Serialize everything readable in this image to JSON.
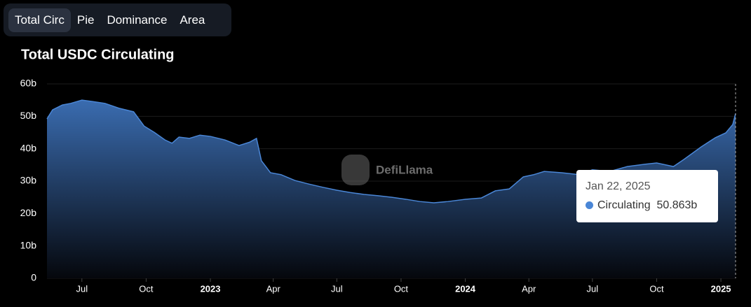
{
  "tabs": [
    "Total Circ",
    "Pie",
    "Dominance",
    "Area"
  ],
  "chart_data": {
    "type": "area",
    "title": "Total USDC Circulating",
    "watermark": "DefiLlama",
    "x": [
      "2022-05-12",
      "2022-05-20",
      "2022-06-03",
      "2022-06-15",
      "2022-07-01",
      "2022-07-15",
      "2022-08-03",
      "2022-08-23",
      "2022-09-13",
      "2022-09-28",
      "2022-10-13",
      "2022-10-28",
      "2022-11-07",
      "2022-11-17",
      "2022-12-02",
      "2022-12-17",
      "2023-01-01",
      "2023-01-22",
      "2023-02-11",
      "2023-02-26",
      "2023-03-08",
      "2023-03-15",
      "2023-03-28",
      "2023-04-12",
      "2023-05-02",
      "2023-05-22",
      "2023-06-11",
      "2023-07-01",
      "2023-07-20",
      "2023-08-09",
      "2023-08-29",
      "2023-09-18",
      "2023-10-08",
      "2023-10-28",
      "2023-11-17",
      "2023-12-07",
      "2024-01-01",
      "2024-01-24",
      "2024-02-13",
      "2024-03-04",
      "2024-03-24",
      "2024-04-08",
      "2024-04-23",
      "2024-05-18",
      "2024-06-12",
      "2024-07-01",
      "2024-07-26",
      "2024-08-20",
      "2024-09-14",
      "2024-10-01",
      "2024-10-25",
      "2024-11-09",
      "2024-12-04",
      "2024-12-24",
      "2025-01-08",
      "2025-01-18",
      "2025-01-22"
    ],
    "series": [
      {
        "name": "Circulating",
        "color": "#4a86d6",
        "values": [
          49.2,
          52,
          53.5,
          54,
          55,
          54.6,
          54,
          52.5,
          51.4,
          47,
          45,
          42.7,
          41.7,
          43.6,
          43.2,
          44.2,
          43.8,
          42.7,
          41,
          42,
          43.2,
          36.3,
          32.6,
          32,
          30.2,
          29.1,
          28.1,
          27.2,
          26.5,
          25.9,
          25.5,
          25,
          24.4,
          23.7,
          23.3,
          23.7,
          24.4,
          24.8,
          27,
          27.6,
          31.3,
          32,
          33,
          32.6,
          32,
          33.5,
          33,
          34.5,
          35.2,
          35.6,
          34.5,
          36.7,
          40.6,
          43.4,
          44.9,
          47.5,
          50.863
        ]
      }
    ],
    "xlim": [
      "2022-05-12",
      "2025-01-22"
    ],
    "xticks": [
      {
        "value": "2022-07-01",
        "label": "Jul"
      },
      {
        "value": "2022-10-01",
        "label": "Oct"
      },
      {
        "value": "2023-01-01",
        "label": "2023"
      },
      {
        "value": "2023-04-01",
        "label": "Apr"
      },
      {
        "value": "2023-07-01",
        "label": "Jul"
      },
      {
        "value": "2023-10-01",
        "label": "Oct"
      },
      {
        "value": "2024-01-01",
        "label": "2024"
      },
      {
        "value": "2024-04-01",
        "label": "Apr"
      },
      {
        "value": "2024-07-01",
        "label": "Jul"
      },
      {
        "value": "2024-10-01",
        "label": "Oct"
      },
      {
        "value": "2025-01-01",
        "label": "2025"
      }
    ],
    "ylim": [
      0,
      60
    ],
    "yticks": [
      0,
      {
        "value": 10,
        "label": "10b"
      },
      {
        "value": 20,
        "label": "20b"
      },
      {
        "value": 30,
        "label": "30b"
      },
      {
        "value": 40,
        "label": "40b"
      },
      {
        "value": 50,
        "label": "50b"
      },
      {
        "value": 60,
        "label": "60b"
      }
    ],
    "grid": true,
    "tooltip": {
      "label": "Jan 22, 2025",
      "value_label": "50.863b"
    }
  }
}
